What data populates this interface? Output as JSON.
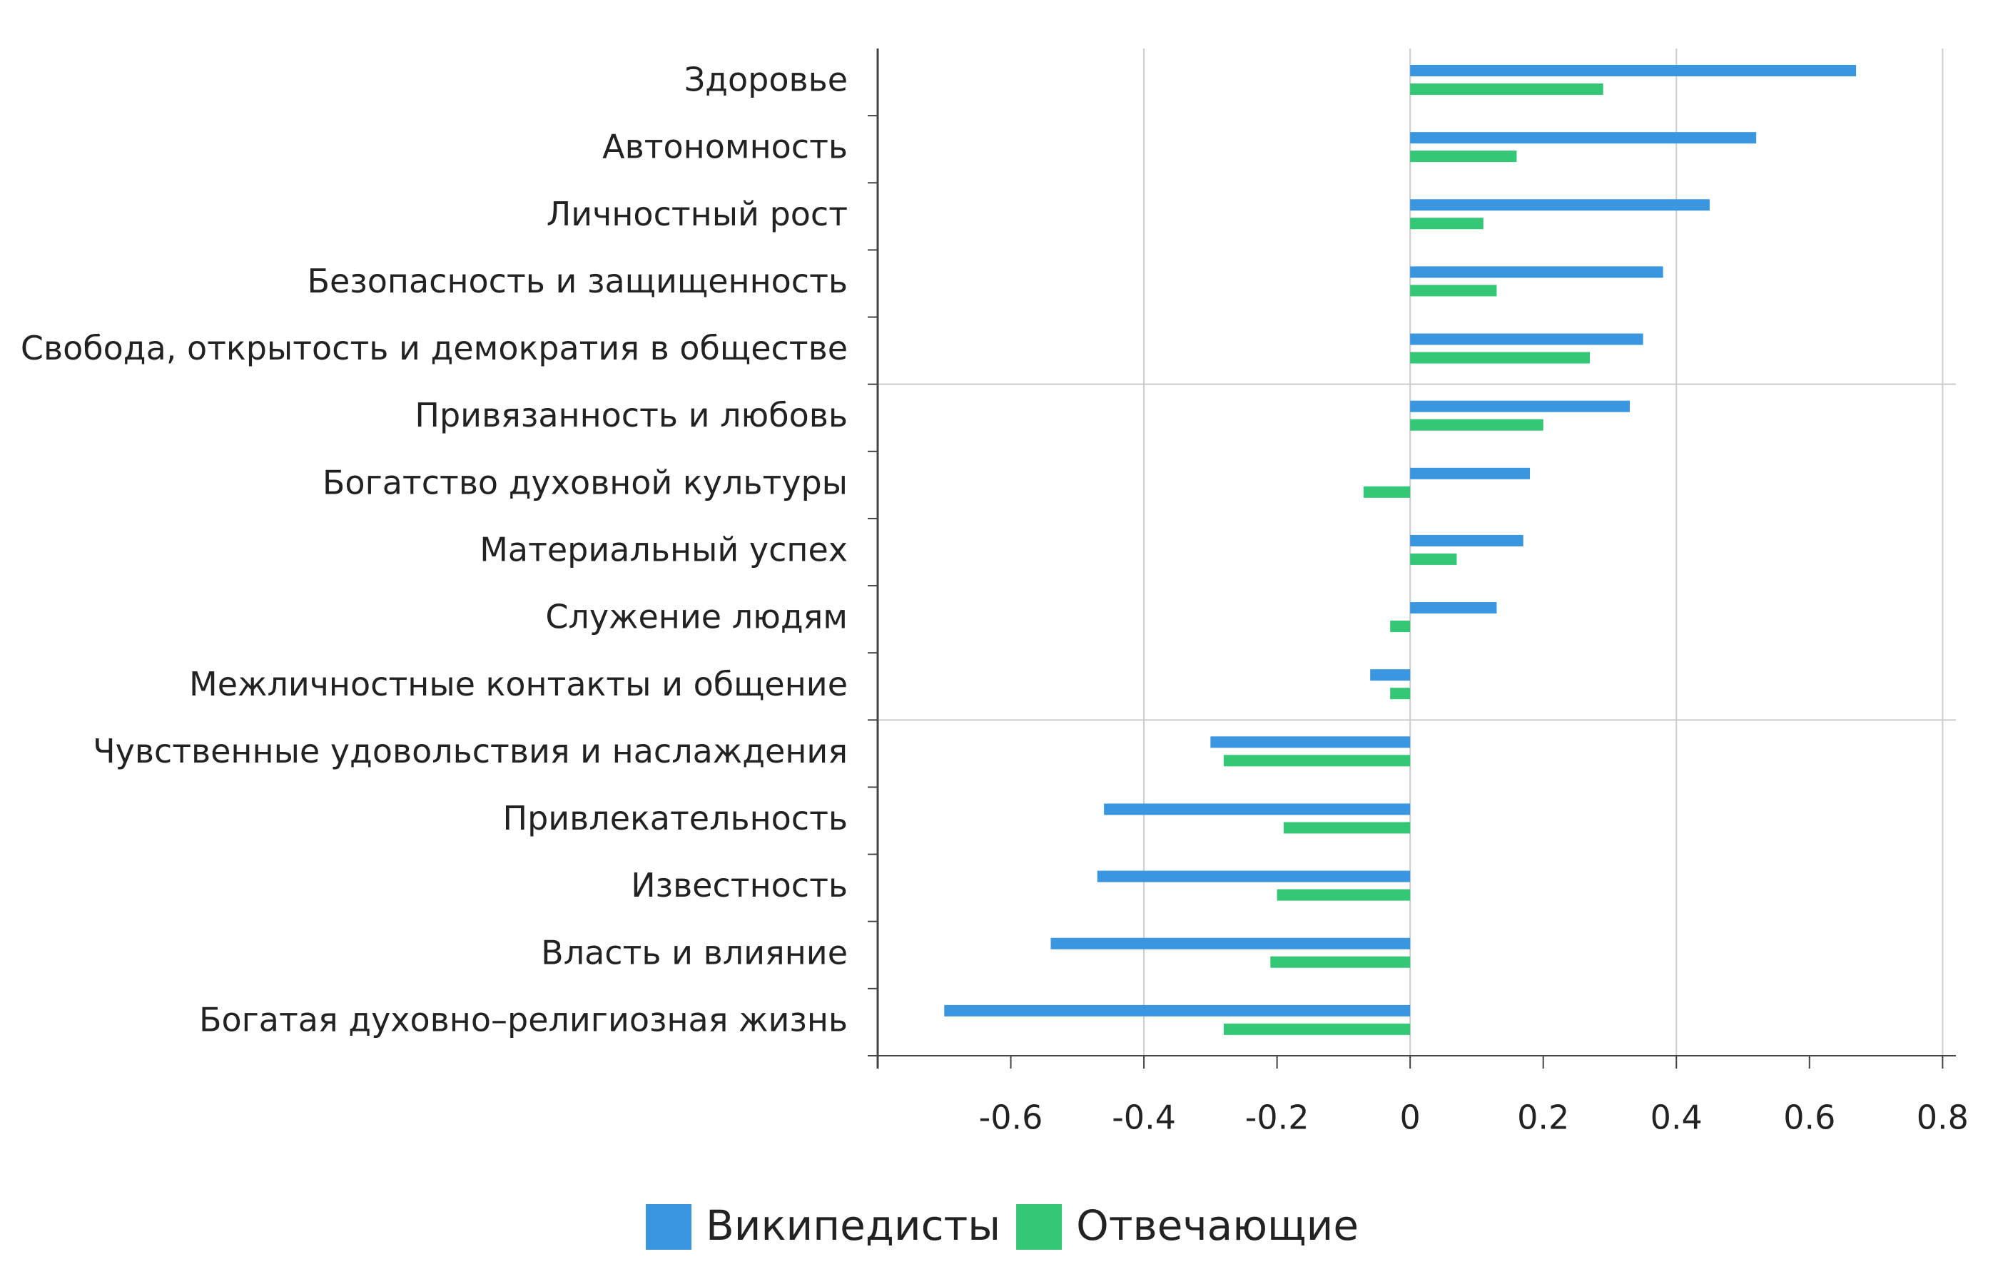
{
  "chart_data": {
    "type": "barh",
    "categories": [
      "Здоровье",
      "Автономность",
      "Личностный рост",
      "Безопасность и защищенность",
      "Свобода, открытость и демократия в обществе",
      "Привязанность и любовь",
      "Богатство духовной культуры",
      "Материальный успех",
      "Служение людям",
      "Межличностные контакты и общение",
      "Чувственные удовольствия и наслаждения",
      "Привлекательность",
      "Известность",
      "Власть и влияние",
      "Богатая духовно–религиозная жизнь"
    ],
    "series": [
      {
        "name": "Википедисты",
        "color": "#3a97df",
        "values": [
          0.67,
          0.52,
          0.45,
          0.38,
          0.35,
          0.33,
          0.18,
          0.17,
          0.13,
          -0.06,
          -0.3,
          -0.46,
          -0.47,
          -0.54,
          -0.7
        ]
      },
      {
        "name": "Отвечающие",
        "color": "#33c776",
        "values": [
          0.29,
          0.16,
          0.11,
          0.13,
          0.27,
          0.2,
          -0.07,
          0.07,
          -0.03,
          -0.03,
          -0.28,
          -0.19,
          -0.2,
          -0.21,
          -0.28
        ]
      }
    ],
    "xlim": [
      -0.8,
      0.82
    ],
    "xticks": [
      -0.6,
      -0.4,
      -0.2,
      0,
      0.2,
      0.4,
      0.6,
      0.8
    ],
    "grid": true,
    "legend": "bottom"
  }
}
